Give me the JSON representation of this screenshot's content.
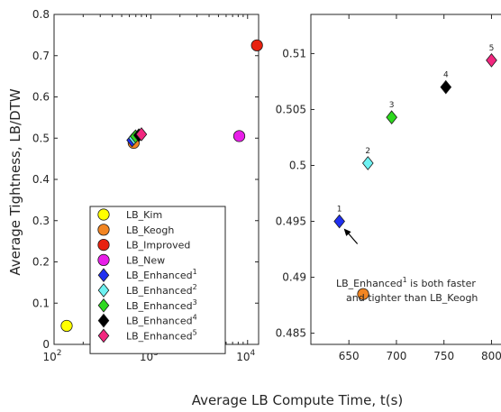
{
  "figure": {
    "ylabel": "Average Tightness, LB/DTW",
    "xlabel": "Average LB Compute Time, t(s)"
  },
  "chart_data": [
    {
      "type": "scatter",
      "panel": "left",
      "x_scale": "log",
      "xlim": [
        100,
        13000
      ],
      "ylim": [
        0,
        0.8
      ],
      "x_ticks": [
        {
          "value": 100,
          "base": "10",
          "exp": "2"
        },
        {
          "value": 1000,
          "base": "10",
          "exp": "3"
        },
        {
          "value": 10000,
          "base": "10",
          "exp": "4"
        }
      ],
      "y_ticks": [
        0,
        0.1,
        0.2,
        0.3,
        0.4,
        0.5,
        0.6,
        0.7,
        0.8
      ],
      "y_tick_labels": [
        "0",
        "0.1",
        "0.2",
        "0.3",
        "0.4",
        "0.5",
        "0.6",
        "0.7",
        "0.8"
      ],
      "legend_placement": "bottom-center",
      "series": [
        {
          "name": "LB_Kim",
          "sup": "",
          "marker": "circle",
          "color": "#ffff00",
          "x": 135,
          "y": 0.045
        },
        {
          "name": "LB_Keogh",
          "sup": "",
          "marker": "circle",
          "color": "#f28522",
          "x": 665,
          "y": 0.4885
        },
        {
          "name": "LB_Improved",
          "sup": "",
          "marker": "circle",
          "color": "#e8210f",
          "x": 12500,
          "y": 0.725
        },
        {
          "name": "LB_New",
          "sup": "",
          "marker": "circle",
          "color": "#e81ee8",
          "x": 8200,
          "y": 0.505
        },
        {
          "name": "LB_Enhanced",
          "sup": "1",
          "marker": "diamond",
          "color": "#1f2ff0",
          "x": 640,
          "y": 0.495
        },
        {
          "name": "LB_Enhanced",
          "sup": "2",
          "marker": "diamond",
          "color": "#6ef2f2",
          "x": 670,
          "y": 0.5002
        },
        {
          "name": "LB_Enhanced",
          "sup": "3",
          "marker": "diamond",
          "color": "#2ed91f",
          "x": 695,
          "y": 0.5043
        },
        {
          "name": "LB_Enhanced",
          "sup": "4",
          "marker": "diamond",
          "color": "#000000",
          "x": 752,
          "y": 0.507
        },
        {
          "name": "LB_Enhanced",
          "sup": "5",
          "marker": "diamond",
          "color": "#f2277f",
          "x": 800,
          "y": 0.5094
        }
      ]
    },
    {
      "type": "scatter",
      "panel": "right",
      "xlim": [
        610,
        810
      ],
      "ylim": [
        0.484,
        0.5135
      ],
      "x_ticks": [
        650,
        700,
        750,
        800
      ],
      "x_tick_labels": [
        "650",
        "700",
        "750",
        "800"
      ],
      "y_ticks": [
        0.485,
        0.49,
        0.495,
        0.5,
        0.505,
        0.51
      ],
      "y_tick_labels": [
        "0.485",
        "0.49",
        "0.495",
        "0.5",
        "0.505",
        "0.51"
      ],
      "series": [
        {
          "name": "LB_Keogh",
          "marker": "circle",
          "color": "#f28522",
          "x": 665,
          "y": 0.4885,
          "label": ""
        },
        {
          "name": "LB_Enhanced1",
          "marker": "diamond",
          "color": "#1f2ff0",
          "x": 640,
          "y": 0.495,
          "label": "1"
        },
        {
          "name": "LB_Enhanced2",
          "marker": "diamond",
          "color": "#6ef2f2",
          "x": 670,
          "y": 0.5002,
          "label": "2"
        },
        {
          "name": "LB_Enhanced3",
          "marker": "diamond",
          "color": "#2ed91f",
          "x": 695,
          "y": 0.5043,
          "label": "3"
        },
        {
          "name": "LB_Enhanced4",
          "marker": "diamond",
          "color": "#000000",
          "x": 752,
          "y": 0.507,
          "label": "4"
        },
        {
          "name": "LB_Enhanced5",
          "marker": "diamond",
          "color": "#f2277f",
          "x": 800,
          "y": 0.5094,
          "label": "5"
        }
      ],
      "annotation": {
        "line1_prefix": "LB_Enhanced",
        "line1_sup": "1",
        "line1_suffix": " is both faster",
        "line2": "and tighter than LB_Keogh"
      }
    }
  ]
}
